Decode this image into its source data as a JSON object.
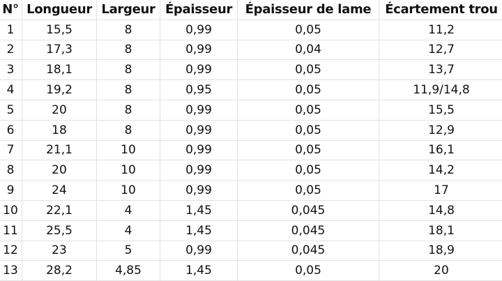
{
  "columns": [
    "N°",
    "Longueur",
    "Largeur",
    "Épaisseur",
    "Épaisseur de lame",
    "Écartement trou"
  ],
  "rows": [
    [
      "1",
      "15,5",
      "8",
      "0,99",
      "0,05",
      "11,2"
    ],
    [
      "2",
      "17,3",
      "8",
      "0,99",
      "0,04",
      "12,7"
    ],
    [
      "3",
      "18,1",
      "8",
      "0,99",
      "0,05",
      "13,7"
    ],
    [
      "4",
      "19,2",
      "8",
      "0,95",
      "0,05",
      "11,9/14,8"
    ],
    [
      "5",
      "20",
      "8",
      "0,99",
      "0,05",
      "15,5"
    ],
    [
      "6",
      "18",
      "8",
      "0,99",
      "0,05",
      "12,9"
    ],
    [
      "7",
      "21,1",
      "10",
      "0,99",
      "0,05",
      "16,1"
    ],
    [
      "8",
      "20",
      "10",
      "0,99",
      "0,05",
      "14,2"
    ],
    [
      "9",
      "24",
      "10",
      "0,99",
      "0,05",
      "17"
    ],
    [
      "10",
      "22,1",
      "4",
      "1,45",
      "0,045",
      "14,8"
    ],
    [
      "11",
      "25,5",
      "4",
      "1,45",
      "0,045",
      "18,1"
    ],
    [
      "12",
      "23",
      "5",
      "0,99",
      "0,045",
      "18,9"
    ],
    [
      "13",
      "28,2",
      "4,85",
      "1,45",
      "0,05",
      "20"
    ]
  ]
}
